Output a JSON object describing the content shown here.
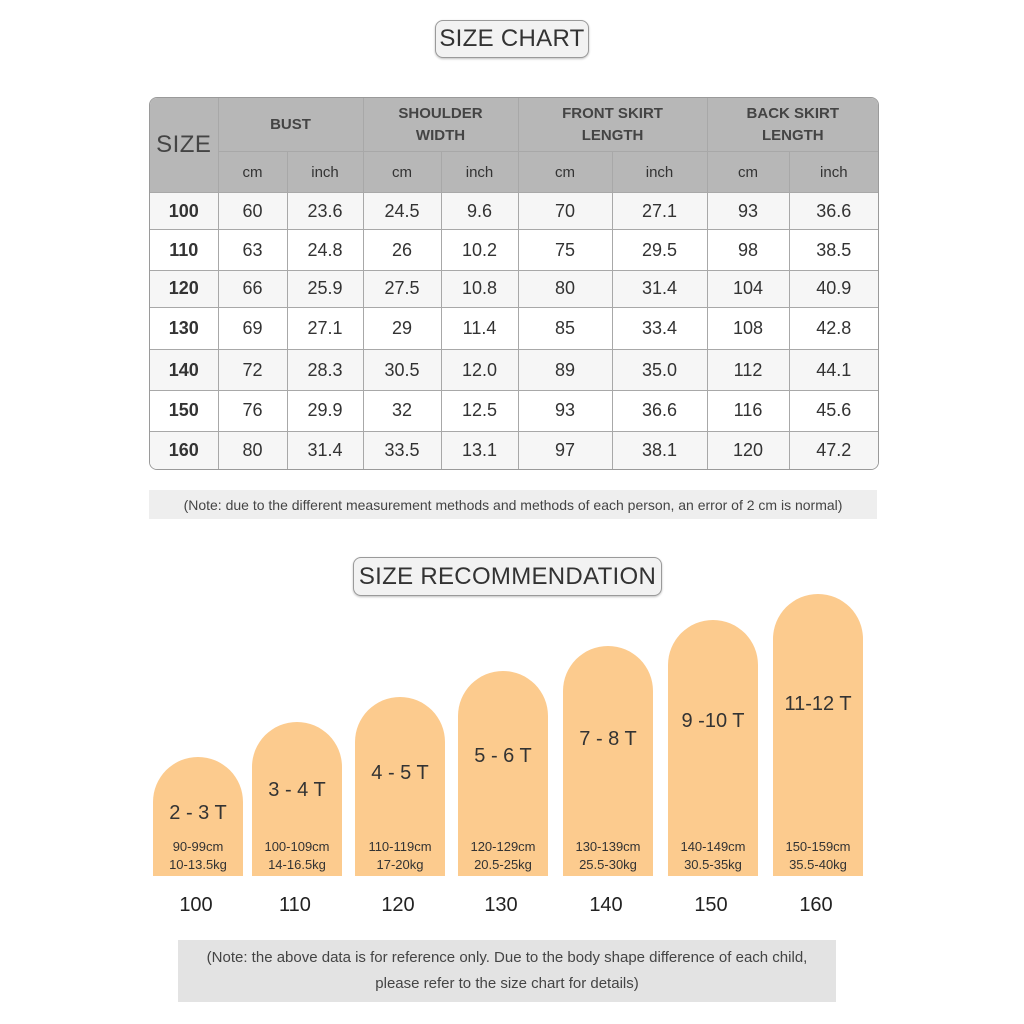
{
  "size_chart_title": "SIZE CHART",
  "table": {
    "size_header": "SIZE",
    "groups": [
      "BUST",
      "SHOULDER WIDTH",
      "FRONT SKIRT LENGTH",
      "BACK SKIRT LENGTH"
    ],
    "units": [
      "cm",
      "inch",
      "cm",
      "inch",
      "cm",
      "inch",
      "cm",
      "inch"
    ],
    "rows": [
      [
        "100",
        "60",
        "23.6",
        "24.5",
        "9.6",
        "70",
        "27.1",
        "93",
        "36.6"
      ],
      [
        "110",
        "63",
        "24.8",
        "26",
        "10.2",
        "75",
        "29.5",
        "98",
        "38.5"
      ],
      [
        "120",
        "66",
        "25.9",
        "27.5",
        "10.8",
        "80",
        "31.4",
        "104",
        "40.9"
      ],
      [
        "130",
        "69",
        "27.1",
        "29",
        "11.4",
        "85",
        "33.4",
        "108",
        "42.8"
      ],
      [
        "140",
        "72",
        "28.3",
        "30.5",
        "12.0",
        "89",
        "35.0",
        "112",
        "44.1"
      ],
      [
        "150",
        "76",
        "29.9",
        "32",
        "12.5",
        "93",
        "36.6",
        "116",
        "45.6"
      ],
      [
        "160",
        "80",
        "31.4",
        "33.5",
        "13.1",
        "97",
        "38.1",
        "120",
        "47.2"
      ]
    ]
  },
  "note_chart": "(Note: due to the different measurement methods and methods of each person, an error of 2 cm is normal)",
  "recommendation_title": "SIZE RECOMMENDATION",
  "recommendations": [
    {
      "age": "2 - 3 T",
      "height": "90-99cm",
      "weight": "10-13.5kg",
      "size": "100"
    },
    {
      "age": "3 - 4 T",
      "height": "100-109cm",
      "weight": "14-16.5kg",
      "size": "110"
    },
    {
      "age": "4 - 5 T",
      "height": "110-119cm",
      "weight": "17-20kg",
      "size": "120"
    },
    {
      "age": "5 - 6 T",
      "height": "120-129cm",
      "weight": "20.5-25kg",
      "size": "130"
    },
    {
      "age": "7 - 8 T",
      "height": "130-139cm",
      "weight": "25.5-30kg",
      "size": "140"
    },
    {
      "age": "9 -10 T",
      "height": "140-149cm",
      "weight": "30.5-35kg",
      "size": "150"
    },
    {
      "age": "11-12 T",
      "height": "150-159cm",
      "weight": "35.5-40kg",
      "size": "160"
    }
  ],
  "note_reco": {
    "line1": "(Note: the above data is for reference only. Due to the body shape difference of each child,",
    "line2": "please refer to the size chart for details)"
  },
  "colors": {
    "arch": "#fccb8e",
    "table_header": "#b7b7b7",
    "note_bg": "#e3e3e3"
  }
}
